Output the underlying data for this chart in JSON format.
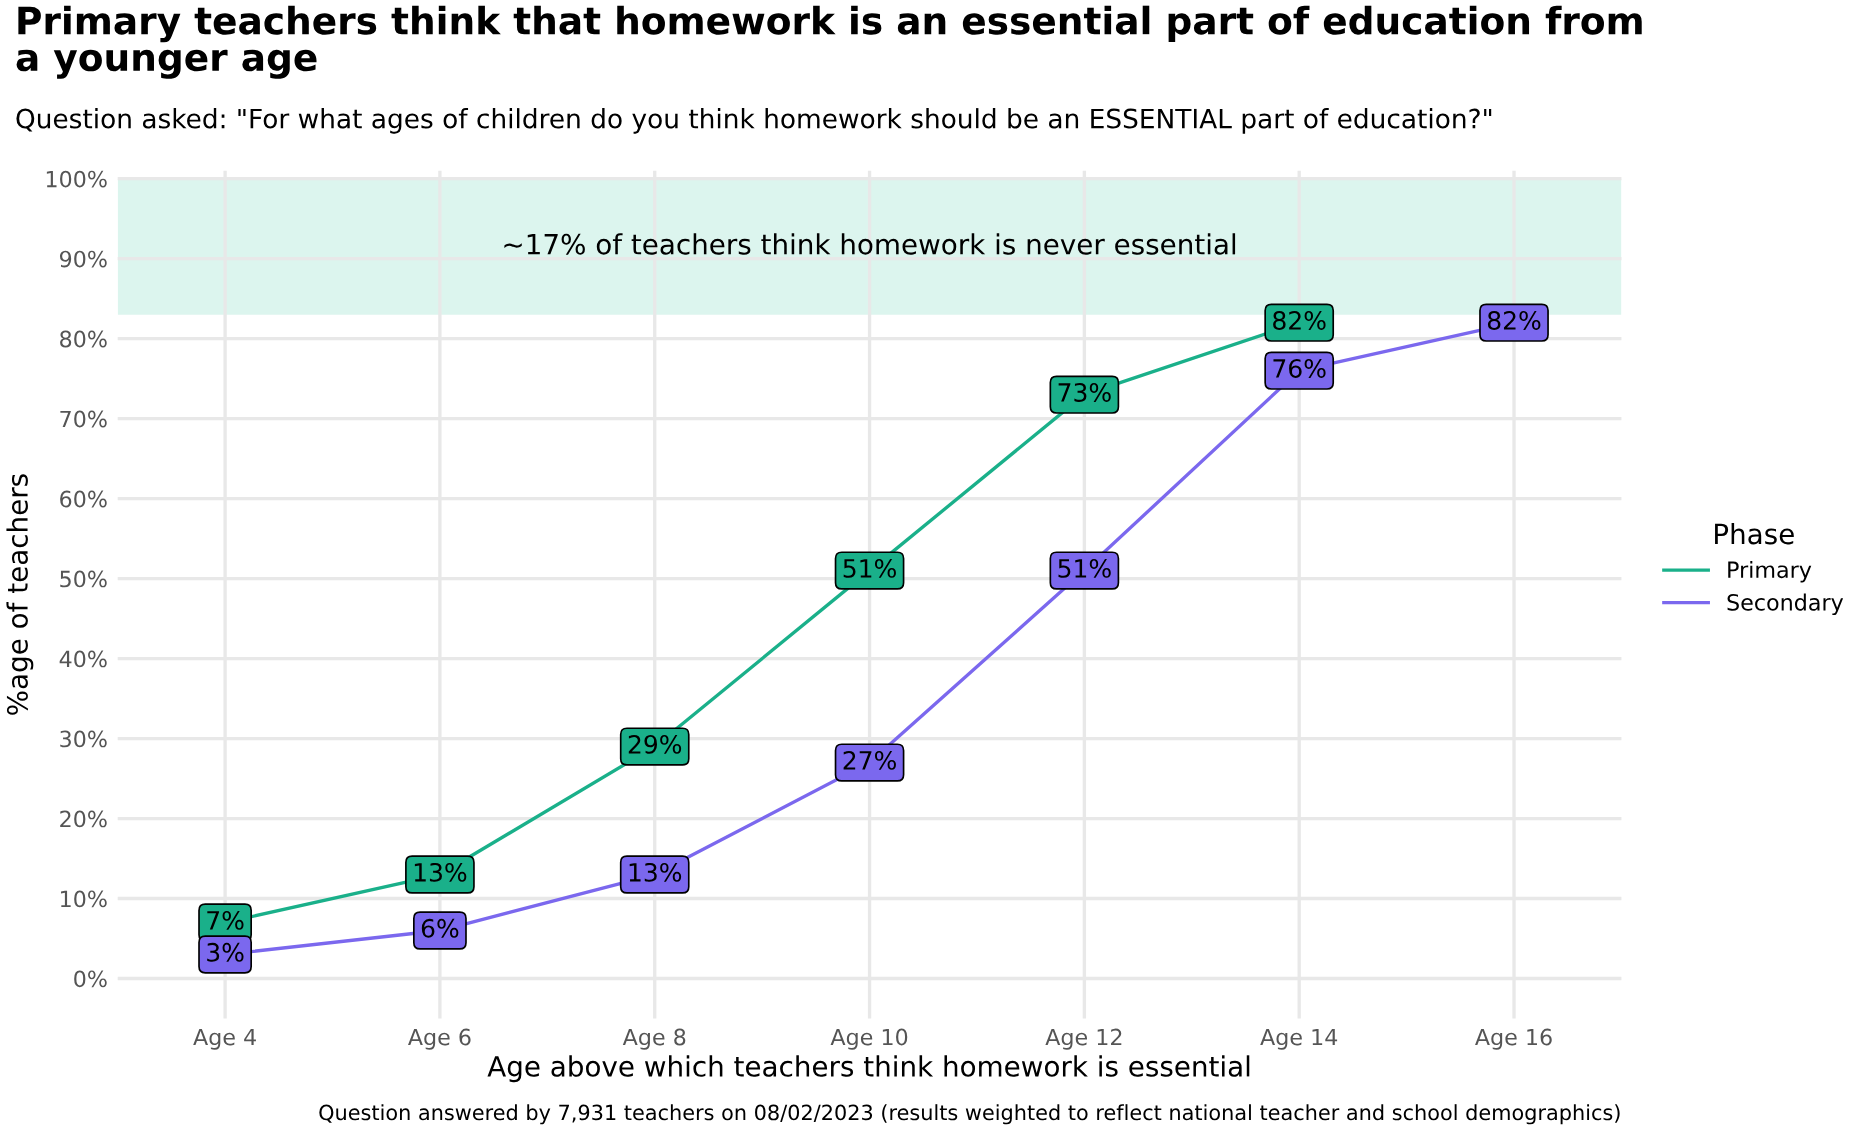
{
  "chart_data": {
    "type": "line",
    "title": "Primary teachers think that homework is an essential part of education from\na younger age",
    "subtitle": "Question asked: \"For what ages of children do you think homework should be an ESSENTIAL part of education?\"",
    "xlabel": "Age above which teachers think homework is essential",
    "ylabel": "%age of teachers",
    "legend_title": "Phase",
    "categories": [
      "Age 4",
      "Age 6",
      "Age 8",
      "Age 10",
      "Age 12",
      "Age 14",
      "Age 16"
    ],
    "series": [
      {
        "name": "Primary",
        "color": "#1ab08a",
        "values": [
          7,
          13,
          29,
          51,
          73,
          82,
          null
        ],
        "value_labels": [
          "7%",
          "13%",
          "29%",
          "51%",
          "73%",
          "82%",
          null
        ]
      },
      {
        "name": "Secondary",
        "color": "#7b68ee",
        "values": [
          3,
          6,
          13,
          27,
          51,
          76,
          82
        ],
        "value_labels": [
          "3%",
          "6%",
          "13%",
          "27%",
          "51%",
          "76%",
          "82%"
        ]
      }
    ],
    "ylim": [
      -5,
      101
    ],
    "yticks": [
      {
        "value": 0,
        "label": "0%"
      },
      {
        "value": 10,
        "label": "10%"
      },
      {
        "value": 20,
        "label": "20%"
      },
      {
        "value": 30,
        "label": "30%"
      },
      {
        "value": 40,
        "label": "40%"
      },
      {
        "value": 50,
        "label": "50%"
      },
      {
        "value": 60,
        "label": "60%"
      },
      {
        "value": 70,
        "label": "70%"
      },
      {
        "value": 80,
        "label": "80%"
      },
      {
        "value": 90,
        "label": "90%"
      },
      {
        "value": 100,
        "label": "100%"
      }
    ],
    "bands": [
      {
        "axis": "y",
        "from": 83,
        "to": 100,
        "label": "~17% of teachers think homework is never essential",
        "color": "#dcf5ee"
      }
    ],
    "annotations": [
      "Question answered by 7,931 teachers on 08/02/2023 (results weighted to reflect national teacher and school demographics)"
    ],
    "grid": true,
    "legend": "right",
    "marker": "square",
    "line_style": "solid"
  }
}
